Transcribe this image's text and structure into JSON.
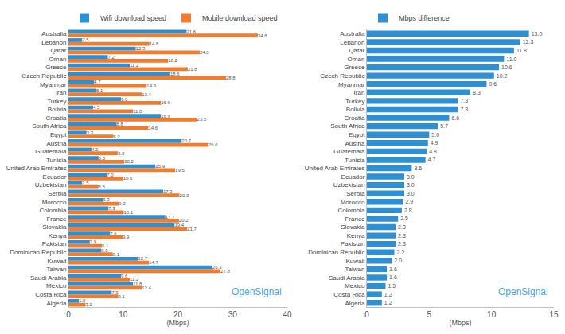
{
  "chart_data": [
    {
      "type": "bar",
      "orientation": "horizontal",
      "grid": false,
      "legend": "top",
      "data_labels": true,
      "x_label": "(Mbps)",
      "xlim": [
        0,
        40
      ],
      "xticks": [
        0,
        10,
        20,
        30,
        40
      ],
      "annotations": [
        "OpenSignal"
      ],
      "categories": [
        "Australia",
        "Lebanon",
        "Qatar",
        "Oman",
        "Greece",
        "Czech Republic",
        "Myanmar",
        "Iran",
        "Turkey",
        "Bolivia",
        "Croatia",
        "South Africa",
        "Egypt",
        "Austria",
        "Guatemala",
        "Tunisia",
        "United Arab Emirates",
        "Ecuador",
        "Uzbekistan",
        "Serbia",
        "Morocco",
        "Colombia",
        "France",
        "Slovakia",
        "Kenya",
        "Pakistan",
        "Dominican Republic",
        "Kuwait",
        "Taiwan",
        "Saudi Arabia",
        "Mexico",
        "Costa Rica",
        "Algeria"
      ],
      "series": [
        {
          "name": "Wifi download speed",
          "color": "#2e8fd2",
          "values": [
            21.6,
            2.5,
            12.3,
            7.2,
            11.2,
            18.6,
            4.7,
            5.1,
            9.6,
            4.5,
            16.9,
            8.8,
            3.3,
            20.7,
            4.2,
            5.5,
            15.9,
            7.0,
            2.5,
            17.3,
            6.3,
            7.3,
            17.7,
            19.4,
            7.6,
            3.9,
            6.0,
            12.7,
            26.3,
            9.6,
            11.8,
            7.9,
            1.9
          ],
          "value_labels": [
            "21.6",
            "2.5",
            "12.3",
            "7.2",
            "11.2",
            "18.6",
            "4.7",
            "5.1",
            "9.6",
            "4.5",
            "16.9",
            "8.8",
            "3.3",
            "20.7",
            "4.2",
            "5.5",
            "15.9",
            "7.0",
            "2.5",
            "17.3",
            "6.3",
            "7.3",
            "17.7",
            "19.4",
            "7.6",
            "3.9",
            "6.0",
            "12.7",
            "26.3",
            "9.6",
            "11.8",
            "7.9",
            "1.9"
          ]
        },
        {
          "name": "Mobile download speed",
          "color": "#ed7d31",
          "values": [
            34.6,
            14.8,
            24.0,
            18.2,
            21.8,
            28.8,
            14.3,
            13.4,
            16.9,
            11.8,
            23.5,
            14.6,
            8.2,
            25.6,
            9.0,
            10.2,
            19.5,
            10.0,
            5.5,
            20.3,
            9.2,
            10.1,
            20.2,
            21.7,
            9.9,
            6.1,
            8.1,
            14.7,
            27.8,
            11.2,
            13.4,
            9.1,
            3.1
          ],
          "value_labels": [
            "34.6",
            "14.8",
            "24.0",
            "18.2",
            "21.8",
            "28.8",
            "14.3",
            "13.4",
            "16.9",
            "11.8",
            "23.5",
            "14.6",
            "8.2",
            "25.6",
            "9.0",
            "10.2",
            "19.5",
            "10.0",
            "5.5",
            "20.3",
            "9.2",
            "10.1",
            "20.2",
            "21.7",
            "9.9",
            "6.1",
            "8.1",
            "14.7",
            "27.8",
            "11.2",
            "13.4",
            "9.1",
            "3.1"
          ]
        }
      ]
    },
    {
      "type": "bar",
      "orientation": "horizontal",
      "grid": false,
      "legend": "top",
      "data_labels": true,
      "x_label": "(Mbps)",
      "xlim": [
        0,
        15
      ],
      "xticks": [
        0,
        5,
        10,
        15
      ],
      "annotations": [
        "OpenSignal"
      ],
      "categories": [
        "Australia",
        "Lebanon",
        "Qatar",
        "Oman",
        "Greece",
        "Czech Republic",
        "Myanmar",
        "Iran",
        "Turkey",
        "Bolivia",
        "Croatia",
        "South Africa",
        "Egypt",
        "Austria",
        "Guatemala",
        "Tunisia",
        "United Arab Emirates",
        "Ecuador",
        "Uzbekistan",
        "Serbia",
        "Morocco",
        "Colombia",
        "France",
        "Slovakia",
        "Kenya",
        "Pakistan",
        "Dominican Republic",
        "Kuwait",
        "Taiwan",
        "Saudi Arabia",
        "Mexico",
        "Costa Rica",
        "Algeria"
      ],
      "series": [
        {
          "name": "Mbps difference",
          "color": "#2e8fd2",
          "values": [
            13.0,
            12.3,
            11.8,
            11.0,
            10.6,
            10.2,
            9.6,
            8.3,
            7.3,
            7.3,
            6.6,
            5.7,
            5.0,
            4.9,
            4.8,
            4.7,
            3.6,
            3.0,
            3.0,
            3.0,
            2.9,
            2.8,
            2.5,
            2.3,
            2.3,
            2.3,
            2.2,
            2.0,
            1.6,
            1.6,
            1.5,
            1.2,
            1.2
          ],
          "value_labels": [
            "13.0",
            "12.3",
            "11.8",
            "11.0",
            "10.6",
            "10.2",
            "9.6",
            "8.3",
            "7.3",
            "7.3",
            "6.6",
            "5.7",
            "5.0",
            "4.9",
            "4.8",
            "4.7",
            "3.6",
            "3.0",
            "3.0",
            "3.0",
            "2.9",
            "2.8",
            "2.5",
            "2.3",
            "2.3",
            "2.3",
            "2.2",
            "2.0",
            "1.6",
            "1.6",
            "1.5",
            "1.2",
            "1.2"
          ]
        }
      ]
    }
  ]
}
